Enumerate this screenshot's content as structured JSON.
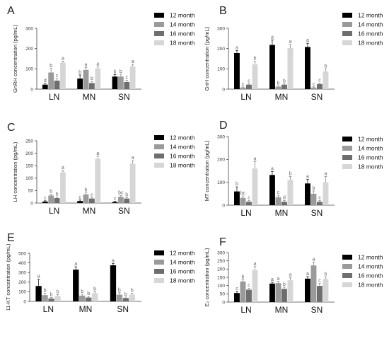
{
  "colors": [
    "#000000",
    "#9a9a9a",
    "#6e6e6e",
    "#d6d6d6"
  ],
  "chart_data": [
    {
      "type": "bar",
      "panel": "A",
      "ylabel": "GnRH concentration (pg/mL)",
      "categories": [
        "LN",
        "MN",
        "SN"
      ],
      "ylim": [
        0,
        300
      ],
      "yticks": [
        0,
        100,
        200,
        300
      ],
      "legend": [
        "12 month",
        "14 month",
        "16 month",
        "18 month"
      ],
      "series": [
        {
          "name": "12 month",
          "values": [
            22,
            52,
            62
          ],
          "err": [
            6,
            18,
            10
          ],
          "sig": [
            "d",
            "b",
            "b"
          ]
        },
        {
          "name": "14 month",
          "values": [
            82,
            95,
            62
          ],
          "err": [
            20,
            12,
            12
          ],
          "sig": [
            "b",
            "a",
            "b"
          ]
        },
        {
          "name": "16 month",
          "values": [
            42,
            30,
            35
          ],
          "err": [
            10,
            8,
            8
          ],
          "sig": [
            "c",
            "b",
            "c"
          ]
        },
        {
          "name": "18 month",
          "values": [
            130,
            102,
            112
          ],
          "err": [
            8,
            8,
            10
          ],
          "sig": [
            "a",
            "a",
            "a"
          ]
        }
      ]
    },
    {
      "type": "bar",
      "panel": "B",
      "ylabel": "GnH concentration (pg/mL)",
      "categories": [
        "LN",
        "MN",
        "SN"
      ],
      "ylim": [
        0,
        300
      ],
      "yticks": [
        0,
        100,
        200,
        300
      ],
      "legend": [
        "12 month",
        "14 month",
        "16 month",
        "18 month"
      ],
      "series": [
        {
          "name": "12 month",
          "values": [
            178,
            218,
            208
          ],
          "err": [
            12,
            25,
            18
          ],
          "sig": [
            "a",
            "a",
            "a"
          ]
        },
        {
          "name": "14 month",
          "values": [
            8,
            12,
            8
          ],
          "err": [
            3,
            4,
            3
          ],
          "sig": [
            "c",
            "b",
            "c"
          ]
        },
        {
          "name": "16 month",
          "values": [
            22,
            22,
            25
          ],
          "err": [
            5,
            5,
            5
          ],
          "sig": [
            "c",
            "b",
            "c"
          ]
        },
        {
          "name": "18 month",
          "values": [
            122,
            202,
            88
          ],
          "err": [
            15,
            18,
            12
          ],
          "sig": [
            "b",
            "a",
            "b"
          ]
        }
      ]
    },
    {
      "type": "bar",
      "panel": "C",
      "ylabel": "LH concentration (pg/mL)",
      "categories": [
        "LN",
        "MN",
        "SN"
      ],
      "ylim": [
        0,
        250
      ],
      "yticks": [
        0,
        50,
        100,
        150,
        200,
        250
      ],
      "legend": [
        "12 month",
        "14 month",
        "16 month",
        "18 month"
      ],
      "series": [
        {
          "name": "12 month",
          "values": [
            6,
            8,
            4
          ],
          "err": [
            3,
            4,
            3
          ],
          "sig": [
            "c",
            "c",
            "c"
          ]
        },
        {
          "name": "14 month",
          "values": [
            30,
            35,
            25
          ],
          "err": [
            6,
            6,
            5
          ],
          "sig": [
            "b",
            "b",
            "bc"
          ]
        },
        {
          "name": "16 month",
          "values": [
            20,
            18,
            18
          ],
          "err": [
            4,
            4,
            4
          ],
          "sig": [
            "b",
            "c",
            "b"
          ]
        },
        {
          "name": "18 month",
          "values": [
            123,
            178,
            158
          ],
          "err": [
            8,
            10,
            12
          ],
          "sig": [
            "a",
            "a",
            "a"
          ]
        }
      ]
    },
    {
      "type": "bar",
      "panel": "D",
      "ylabel": "MT concentration (pg/mL)",
      "categories": [
        "LN",
        "MN",
        "SN"
      ],
      "ylim": [
        0,
        300
      ],
      "yticks": [
        0,
        100,
        200,
        300
      ],
      "legend": [
        "12 month",
        "14 month",
        "16 month",
        "18 month"
      ],
      "series": [
        {
          "name": "12 month",
          "values": [
            60,
            132,
            95
          ],
          "err": [
            20,
            15,
            18
          ],
          "sig": [
            "b",
            "a",
            "a"
          ]
        },
        {
          "name": "14 month",
          "values": [
            32,
            35,
            50
          ],
          "err": [
            8,
            8,
            12
          ],
          "sig": [
            "bc",
            "c",
            "b"
          ]
        },
        {
          "name": "16 month",
          "values": [
            15,
            15,
            15
          ],
          "err": [
            5,
            5,
            5
          ],
          "sig": [
            "c",
            "d",
            "c"
          ]
        },
        {
          "name": "18 month",
          "values": [
            160,
            110,
            100
          ],
          "err": [
            30,
            15,
            25
          ],
          "sig": [
            "a",
            "b",
            "a"
          ]
        }
      ]
    },
    {
      "type": "bar",
      "panel": "E",
      "ylabel": "11-KT concentration (pg/mL)",
      "categories": [
        "LN",
        "MN",
        "SN"
      ],
      "ylim": [
        0,
        500
      ],
      "yticks": [
        0,
        100,
        200,
        300,
        400,
        500
      ],
      "legend": [
        "12 month",
        "14 month",
        "16 month",
        "18 month"
      ],
      "series": [
        {
          "name": "12 month",
          "values": [
            160,
            330,
            375
          ],
          "err": [
            70,
            30,
            20
          ],
          "sig": [
            "a",
            "a",
            "a"
          ]
        },
        {
          "name": "14 month",
          "values": [
            65,
            60,
            70
          ],
          "err": [
            20,
            15,
            20
          ],
          "sig": [
            "b",
            "b",
            "b"
          ]
        },
        {
          "name": "16 month",
          "values": [
            30,
            40,
            35
          ],
          "err": [
            10,
            10,
            10
          ],
          "sig": [
            "b",
            "b",
            "b"
          ]
        },
        {
          "name": "18 month",
          "values": [
            55,
            85,
            70
          ],
          "err": [
            15,
            15,
            15
          ],
          "sig": [
            "b",
            "b",
            "b"
          ]
        }
      ]
    },
    {
      "type": "bar",
      "panel": "F",
      "ylabel": "E₂ concentration (pg/mL)",
      "categories": [
        "LN",
        "MN",
        "SN"
      ],
      "ylim": [
        0,
        300
      ],
      "yticks": [
        0,
        50,
        100,
        150,
        200,
        250,
        300
      ],
      "legend": [
        "12 month",
        "14 month",
        "16 month",
        "18 month"
      ],
      "series": [
        {
          "name": "12 month",
          "values": [
            55,
            112,
            142
          ],
          "err": [
            10,
            8,
            12
          ],
          "sig": [
            "c",
            "a",
            "a"
          ]
        },
        {
          "name": "14 month",
          "values": [
            125,
            115,
            222
          ],
          "err": [
            10,
            10,
            20
          ],
          "sig": [
            "b",
            "a",
            "a"
          ]
        },
        {
          "name": "16 month",
          "values": [
            75,
            80,
            98
          ],
          "err": [
            8,
            10,
            15
          ],
          "sig": [
            "c",
            "b",
            "c"
          ]
        },
        {
          "name": "18 month",
          "values": [
            195,
            132,
            140
          ],
          "err": [
            20,
            15,
            12
          ],
          "sig": [
            "a",
            "a",
            "b"
          ]
        }
      ]
    }
  ]
}
